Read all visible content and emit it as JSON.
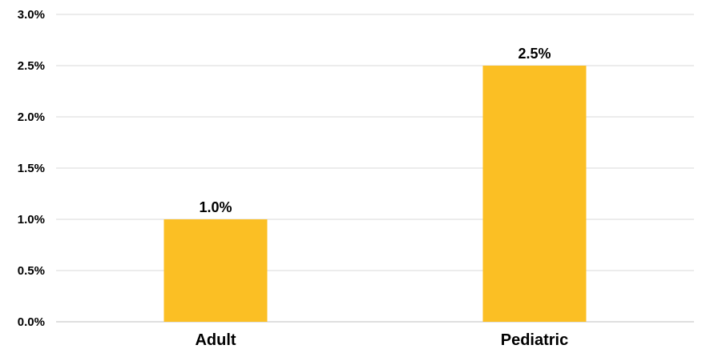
{
  "chart_data": {
    "type": "bar",
    "categories": [
      "Adult",
      "Pediatric"
    ],
    "values": [
      1.0,
      2.5
    ],
    "data_labels": [
      "1.0%",
      "2.5%"
    ],
    "title": "",
    "xlabel": "",
    "ylabel": "",
    "ylim": [
      0,
      3.0
    ],
    "yticks": [
      0,
      0.5,
      1.0,
      1.5,
      2.0,
      2.5,
      3.0
    ],
    "ytick_labels": [
      "0.0%",
      "0.5%",
      "1.0%",
      "1.5%",
      "2.0%",
      "2.5%",
      "3.0%"
    ],
    "grid": true,
    "legend": "none",
    "bar_color": "#FBBF24",
    "gridline_color": "#D9D9D9"
  }
}
